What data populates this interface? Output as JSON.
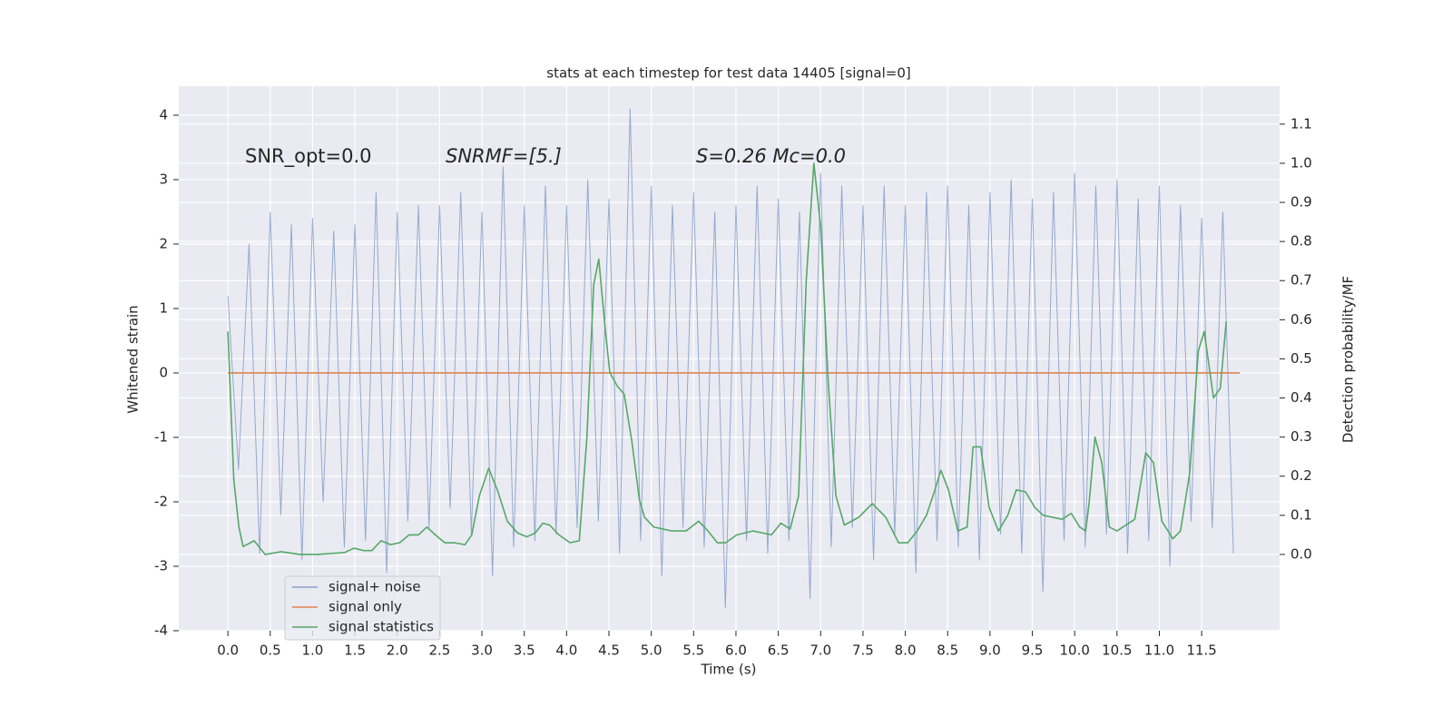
{
  "chart_data": {
    "type": "line",
    "title": "stats at each timestep for test data 14405 [signal=0]",
    "x_label": "Time (s)",
    "y_label": "Whitened strain",
    "y2_label": "Detection probability/MF",
    "annotations": [
      "SNR_opt=0.0",
      "SNRMF=[5.]",
      "S=0.26   Mc=0.0"
    ],
    "grid": true,
    "legend": "lower left",
    "xlim": [
      -0.58,
      12.42
    ],
    "ylim": [
      -4.0,
      4.45
    ],
    "y2lim": [
      -0.195,
      1.197
    ],
    "xticks": [
      {
        "value": 0,
        "label": "0.0"
      },
      0.5,
      {
        "value": 1,
        "label": "1.0"
      },
      1.5,
      {
        "value": 2,
        "label": "2.0"
      },
      2.5,
      {
        "value": 3,
        "label": "3.0"
      },
      3.5,
      {
        "value": 4,
        "label": "4.0"
      },
      4.5,
      {
        "value": 5,
        "label": "5.0"
      },
      5.5,
      {
        "value": 6,
        "label": "6.0"
      },
      6.5,
      {
        "value": 7,
        "label": "7.0"
      },
      7.5,
      {
        "value": 8,
        "label": "8.0"
      },
      8.5,
      {
        "value": 9,
        "label": "9.0"
      },
      9.5,
      {
        "value": 10,
        "label": "10.0"
      },
      10.5,
      {
        "value": 11,
        "label": "11.0"
      },
      11.5
    ],
    "yticks": [
      -4,
      -3,
      -2,
      -1,
      0,
      1,
      2,
      3,
      4
    ],
    "y2ticks": [
      {
        "value": 0,
        "label": "0.0"
      },
      0.1,
      0.2,
      0.3,
      0.4,
      0.5,
      0.6,
      0.7,
      0.8,
      0.9,
      {
        "value": 1,
        "label": "1.0"
      },
      1.1
    ],
    "series": [
      {
        "name": "signal+ noise",
        "color": "#4c72b0",
        "x": [
          0,
          0.125,
          0.25,
          0.375,
          0.5,
          0.625,
          0.75,
          0.875,
          1,
          1.125,
          1.25,
          1.375,
          1.5,
          1.625,
          1.75,
          1.875,
          2,
          2.125,
          2.25,
          2.375,
          2.5,
          2.625,
          2.75,
          2.875,
          3,
          3.125,
          3.25,
          3.375,
          3.5,
          3.625,
          3.75,
          3.875,
          4,
          4.125,
          4.25,
          4.375,
          4.5,
          4.625,
          4.75,
          4.875,
          5,
          5.125,
          5.25,
          5.375,
          5.5,
          5.625,
          5.75,
          5.875,
          6,
          6.125,
          6.25,
          6.375,
          6.5,
          6.625,
          6.75,
          6.875,
          7,
          7.125,
          7.25,
          7.375,
          7.5,
          7.625,
          7.75,
          7.875,
          8,
          8.125,
          8.25,
          8.375,
          8.5,
          8.625,
          8.75,
          8.875,
          9,
          9.125,
          9.25,
          9.375,
          9.5,
          9.625,
          9.75,
          9.875,
          10,
          10.125,
          10.25,
          10.375,
          10.5,
          10.625,
          10.75,
          10.875,
          11,
          11.125,
          11.25,
          11.375,
          11.5,
          11.625,
          11.75,
          11.875
        ],
        "values": [
          1.2,
          -1.5,
          2.0,
          -2.8,
          2.5,
          -2.2,
          2.3,
          -2.9,
          2.4,
          -2.0,
          2.2,
          -2.7,
          2.3,
          -2.6,
          2.8,
          -3.1,
          2.5,
          -2.3,
          2.6,
          -2.4,
          2.6,
          -2.1,
          2.8,
          -2.5,
          2.5,
          -3.15,
          3.2,
          -2.7,
          2.6,
          -2.6,
          2.9,
          -2.5,
          2.6,
          -2.4,
          3.0,
          -2.3,
          2.7,
          -2.8,
          4.1,
          -2.6,
          2.9,
          -3.15,
          2.6,
          -2.4,
          2.8,
          -2.7,
          2.5,
          -3.65,
          2.6,
          -2.6,
          2.9,
          -2.8,
          2.7,
          -2.6,
          2.5,
          -3.5,
          3.1,
          -2.7,
          2.9,
          -2.4,
          2.6,
          -2.9,
          2.9,
          -2.5,
          2.6,
          -3.1,
          2.8,
          -2.6,
          2.9,
          -2.7,
          2.6,
          -2.9,
          2.8,
          -2.5,
          3.0,
          -2.8,
          2.7,
          -3.4,
          2.8,
          -2.6,
          3.1,
          -2.7,
          2.9,
          -2.5,
          3.0,
          -2.8,
          2.7,
          -2.6,
          2.9,
          -3.0,
          2.6,
          -2.3,
          2.4,
          -2.4,
          2.5,
          -2.8
        ]
      },
      {
        "name": "signal only",
        "color": "#dd8452",
        "x": [
          0,
          11.95
        ],
        "values": [
          0,
          0
        ]
      },
      {
        "name": "signal statistics",
        "color": "#55a868",
        "axis": "y2",
        "x": [
          0,
          0.07,
          0.13,
          0.18,
          0.31,
          0.44,
          0.63,
          0.85,
          1.06,
          1.38,
          1.49,
          1.6,
          1.7,
          1.81,
          1.92,
          2.03,
          2.14,
          2.25,
          2.35,
          2.45,
          2.56,
          2.67,
          2.8,
          2.88,
          2.97,
          3.08,
          3.19,
          3.3,
          3.42,
          3.53,
          3.63,
          3.72,
          3.8,
          3.91,
          4.04,
          4.15,
          4.24,
          4.32,
          4.38,
          4.45,
          4.51,
          4.6,
          4.68,
          4.77,
          4.86,
          4.92,
          5.03,
          5.24,
          5.41,
          5.56,
          5.67,
          5.78,
          5.88,
          6.01,
          6.2,
          6.42,
          6.53,
          6.64,
          6.74,
          6.83,
          6.92,
          7.0,
          7.09,
          7.18,
          7.28,
          7.45,
          7.61,
          7.77,
          7.92,
          8.03,
          8.14,
          8.25,
          8.35,
          8.42,
          8.51,
          8.62,
          8.73,
          8.8,
          8.89,
          8.99,
          9.1,
          9.21,
          9.31,
          9.42,
          9.53,
          9.63,
          9.85,
          9.96,
          10.06,
          10.13,
          10.17,
          10.24,
          10.32,
          10.41,
          10.5,
          10.71,
          10.84,
          10.93,
          11.03,
          11.16,
          11.25,
          11.36,
          11.46,
          11.53,
          11.64,
          11.72,
          11.79
        ],
        "values": [
          0.57,
          0.19,
          0.07,
          0.02,
          0.035,
          0.0,
          0.007,
          0.0,
          0.0,
          0.005,
          0.016,
          0.01,
          0.01,
          0.035,
          0.025,
          0.03,
          0.05,
          0.05,
          0.07,
          0.05,
          0.03,
          0.03,
          0.025,
          0.05,
          0.15,
          0.22,
          0.16,
          0.085,
          0.055,
          0.045,
          0.055,
          0.08,
          0.075,
          0.05,
          0.03,
          0.035,
          0.3,
          0.69,
          0.755,
          0.59,
          0.465,
          0.43,
          0.41,
          0.29,
          0.14,
          0.095,
          0.07,
          0.06,
          0.06,
          0.085,
          0.06,
          0.03,
          0.03,
          0.05,
          0.06,
          0.05,
          0.08,
          0.065,
          0.15,
          0.7,
          1.0,
          0.84,
          0.44,
          0.15,
          0.075,
          0.095,
          0.13,
          0.095,
          0.03,
          0.03,
          0.06,
          0.1,
          0.165,
          0.215,
          0.165,
          0.06,
          0.07,
          0.275,
          0.275,
          0.12,
          0.06,
          0.1,
          0.165,
          0.16,
          0.12,
          0.1,
          0.09,
          0.105,
          0.07,
          0.06,
          0.13,
          0.3,
          0.235,
          0.07,
          0.06,
          0.09,
          0.26,
          0.235,
          0.085,
          0.04,
          0.06,
          0.21,
          0.52,
          0.57,
          0.4,
          0.425,
          0.595
        ]
      }
    ]
  }
}
